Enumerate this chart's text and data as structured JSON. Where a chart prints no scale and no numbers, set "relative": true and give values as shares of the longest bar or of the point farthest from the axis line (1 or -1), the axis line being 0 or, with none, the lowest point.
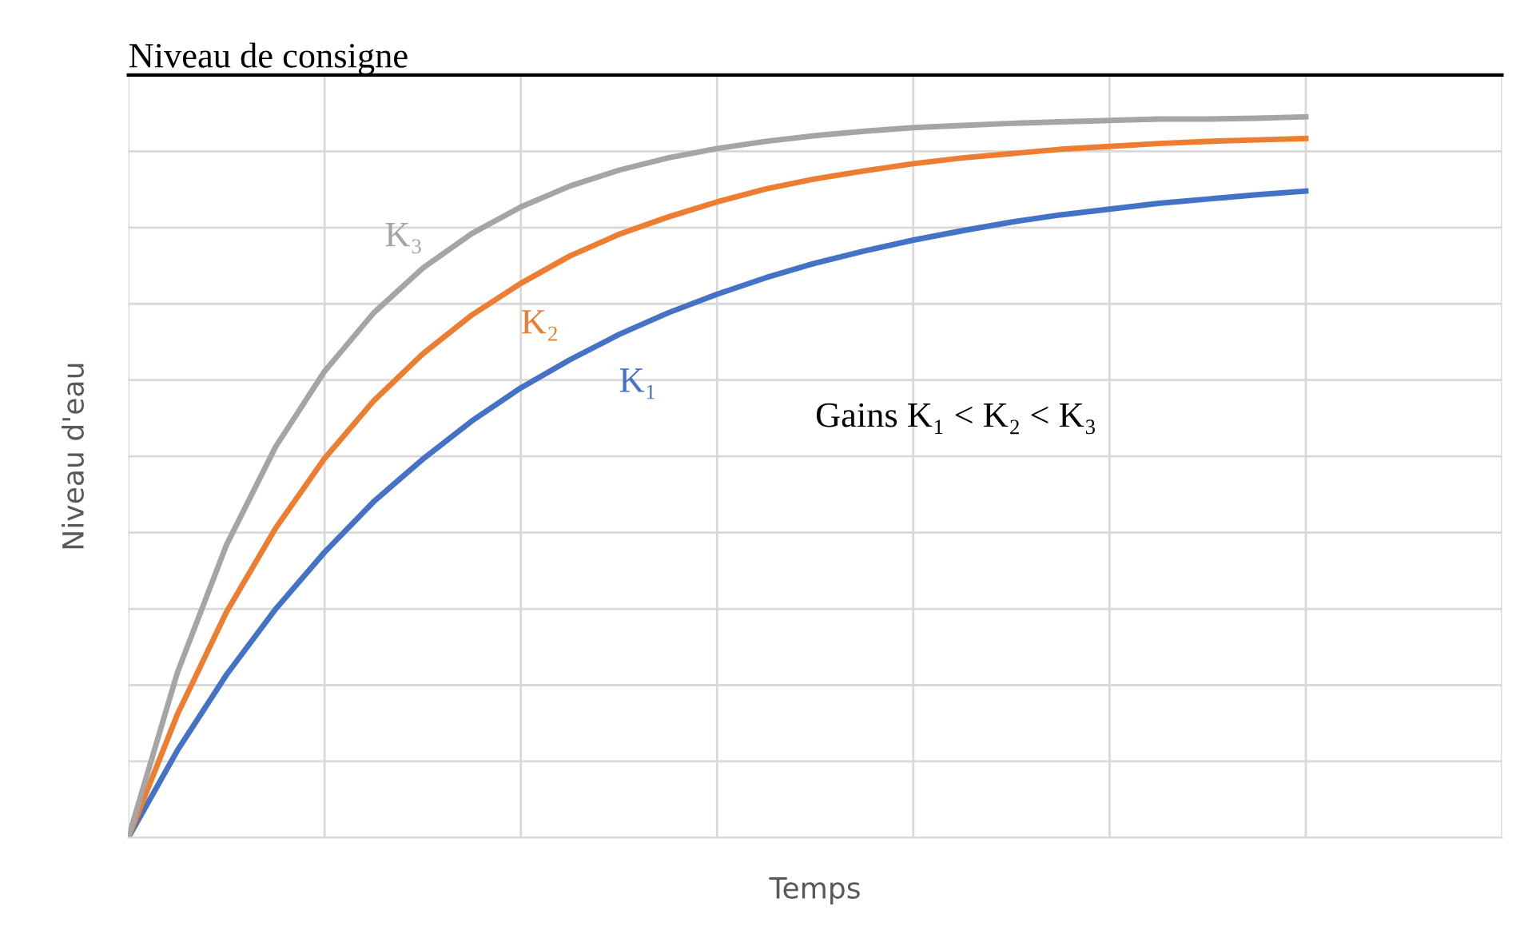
{
  "chart_data": {
    "type": "line",
    "relative": true,
    "xlabel": "Temps",
    "ylabel": "Niveau d'eau",
    "categories": [
      null,
      null,
      null,
      null,
      null,
      null,
      null,
      null,
      null,
      null,
      null,
      null,
      null,
      null,
      null,
      null,
      null,
      null,
      null,
      null,
      null,
      null,
      null,
      null,
      null,
      null,
      null,
      null,
      null
    ],
    "series": [
      {
        "name": "K₁",
        "color": "#4472c4",
        "values": [
          0,
          0.121,
          0.226,
          0.317,
          0.396,
          0.466,
          0.525,
          0.578,
          0.624,
          0.663,
          0.698,
          0.728,
          0.754,
          0.777,
          0.797,
          0.814,
          0.829,
          0.842,
          0.854,
          0.864,
          0.872,
          0.88,
          0.886,
          0.892,
          0.897,
          null,
          null,
          null,
          null
        ]
      },
      {
        "name": "K₂",
        "color": "#ed7d31",
        "values": [
          0,
          0.171,
          0.313,
          0.429,
          0.526,
          0.606,
          0.671,
          0.725,
          0.769,
          0.807,
          0.837,
          0.861,
          0.882,
          0.9,
          0.914,
          0.925,
          0.935,
          0.943,
          0.949,
          0.955,
          0.959,
          0.963,
          0.966,
          0.968,
          0.97,
          null,
          null,
          null,
          null
        ]
      },
      {
        "name": "K₃",
        "color": "#a5a5a5",
        "values": [
          0,
          0.229,
          0.406,
          0.542,
          0.647,
          0.728,
          0.79,
          0.838,
          0.875,
          0.904,
          0.926,
          0.943,
          0.956,
          0.966,
          0.974,
          0.98,
          0.985,
          0.988,
          0.991,
          0.993,
          0.995,
          0.997,
          0.997,
          0.998,
          1,
          null,
          null,
          null,
          null
        ]
      }
    ],
    "ref_lines": [
      {
        "axis": "y",
        "value": 1.058,
        "label": "Niveau de consigne",
        "color": "#000000"
      }
    ],
    "annotations": [
      {
        "text": "Gains K₁ < K₂ < K₃"
      }
    ],
    "grid": true,
    "legend": false,
    "marker": "none",
    "line_style": "solid"
  }
}
